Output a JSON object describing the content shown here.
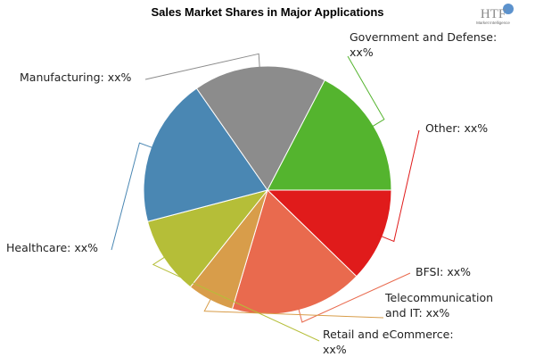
{
  "chart_data": {
    "type": "pie",
    "title": "Sales Market Shares in Major Applications",
    "slices": [
      {
        "label": "Other: xx%",
        "value": 12,
        "color": "#e01b1b"
      },
      {
        "label": "BFSI: xx%",
        "value": 17,
        "color": "#e96a4e"
      },
      {
        "label": "Telecommunication and IT: xx%",
        "value": 6,
        "color": "#d89d4a"
      },
      {
        "label": "Retail and eCommerce: xx%",
        "value": 10,
        "color": "#b5be38"
      },
      {
        "label": "Healthcare: xx%",
        "value": 19,
        "color": "#4a87b3"
      },
      {
        "label": "Manufacturing: xx%",
        "value": 17,
        "color": "#8c8c8c"
      },
      {
        "label": "Government and Defense: xx%",
        "value": 17,
        "color": "#54b42e"
      }
    ]
  },
  "logo": {
    "main": "HTF",
    "sub": "Market Intelligence"
  }
}
